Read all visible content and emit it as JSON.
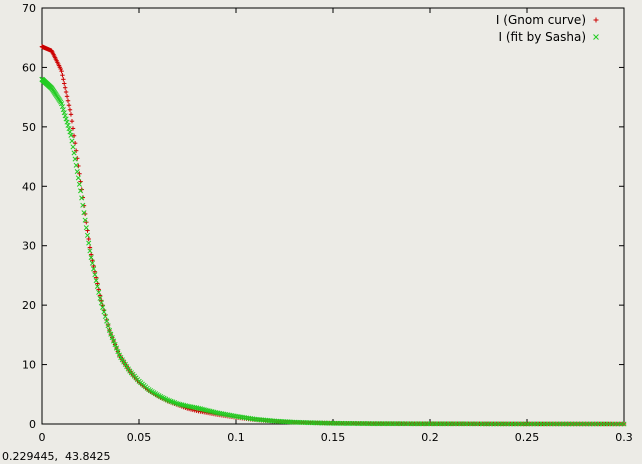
{
  "chart_data": {
    "type": "scatter",
    "title": "",
    "xlabel": "",
    "ylabel": "",
    "xlim": [
      0,
      0.3
    ],
    "ylim": [
      0,
      70
    ],
    "x_ticks": [
      "0",
      "0.05",
      "0.1",
      "0.15",
      "0.2",
      "0.25",
      "0.3"
    ],
    "y_ticks": [
      "0",
      "10",
      "20",
      "30",
      "40",
      "50",
      "60",
      "70"
    ],
    "grid": false,
    "legend_position": "top-right",
    "series": [
      {
        "name": "I (Gnom curve)",
        "marker": "+",
        "color": "#cc0000",
        "points": [
          [
            0.0,
            63.5
          ],
          [
            0.005,
            62.8
          ],
          [
            0.01,
            59.5
          ],
          [
            0.015,
            52.0
          ],
          [
            0.02,
            40.5
          ],
          [
            0.025,
            29.0
          ],
          [
            0.03,
            21.5
          ],
          [
            0.035,
            15.5
          ],
          [
            0.04,
            11.5
          ],
          [
            0.045,
            9.0
          ],
          [
            0.05,
            7.0
          ],
          [
            0.055,
            5.6
          ],
          [
            0.06,
            4.6
          ],
          [
            0.065,
            3.8
          ],
          [
            0.07,
            3.2
          ],
          [
            0.075,
            2.6
          ],
          [
            0.08,
            2.2
          ],
          [
            0.09,
            1.6
          ],
          [
            0.1,
            1.1
          ],
          [
            0.11,
            0.7
          ],
          [
            0.12,
            0.45
          ],
          [
            0.13,
            0.3
          ],
          [
            0.14,
            0.2
          ],
          [
            0.15,
            0.15
          ],
          [
            0.17,
            0.08
          ],
          [
            0.2,
            0.05
          ],
          [
            0.25,
            0.02
          ],
          [
            0.3,
            0.01
          ]
        ]
      },
      {
        "name": "I (fit by Sasha)",
        "marker": "x",
        "color": "#22cc22",
        "points": [
          [
            0.0,
            58.0
          ],
          [
            0.005,
            56.5
          ],
          [
            0.01,
            54.0
          ],
          [
            0.015,
            48.5
          ],
          [
            0.02,
            39.0
          ],
          [
            0.025,
            28.5
          ],
          [
            0.03,
            21.0
          ],
          [
            0.035,
            15.5
          ],
          [
            0.04,
            11.5
          ],
          [
            0.045,
            9.0
          ],
          [
            0.05,
            7.2
          ],
          [
            0.055,
            5.8
          ],
          [
            0.06,
            4.8
          ],
          [
            0.065,
            4.0
          ],
          [
            0.07,
            3.4
          ],
          [
            0.075,
            3.0
          ],
          [
            0.08,
            2.7
          ],
          [
            0.09,
            1.9
          ],
          [
            0.1,
            1.3
          ],
          [
            0.11,
            0.8
          ],
          [
            0.12,
            0.5
          ],
          [
            0.13,
            0.3
          ],
          [
            0.14,
            0.2
          ],
          [
            0.15,
            0.12
          ],
          [
            0.17,
            0.06
          ],
          [
            0.2,
            0.03
          ],
          [
            0.25,
            0.01
          ],
          [
            0.3,
            0.0
          ]
        ]
      }
    ]
  },
  "status": {
    "coordinates": "0.229445,  43.8425"
  }
}
